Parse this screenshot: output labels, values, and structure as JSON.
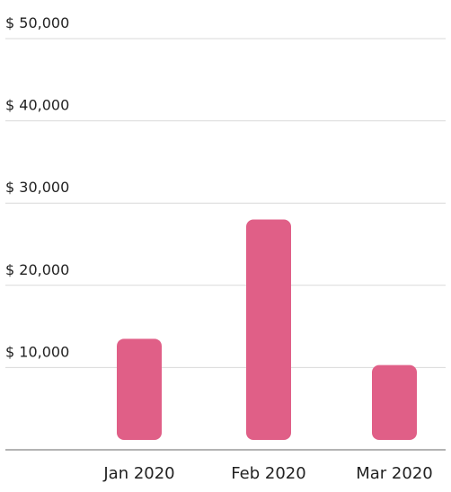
{
  "chart_data": {
    "type": "bar",
    "categories": [
      "Jan 2020",
      "Feb 2020",
      "Mar 2020"
    ],
    "values": [
      13500,
      28000,
      10300
    ],
    "ylim": [
      0,
      50000
    ],
    "yticks": [
      {
        "value": 10000,
        "label": "$ 10,000"
      },
      {
        "value": 20000,
        "label": "$ 20,000"
      },
      {
        "value": 30000,
        "label": "$ 30,000"
      },
      {
        "value": 40000,
        "label": "$ 40,000"
      },
      {
        "value": 50000,
        "label": "$ 50,000"
      }
    ],
    "grid": true,
    "bar_color": "#e05f87",
    "grid_color": "#d9d9d9",
    "axis_color": "#9a9a9a"
  }
}
